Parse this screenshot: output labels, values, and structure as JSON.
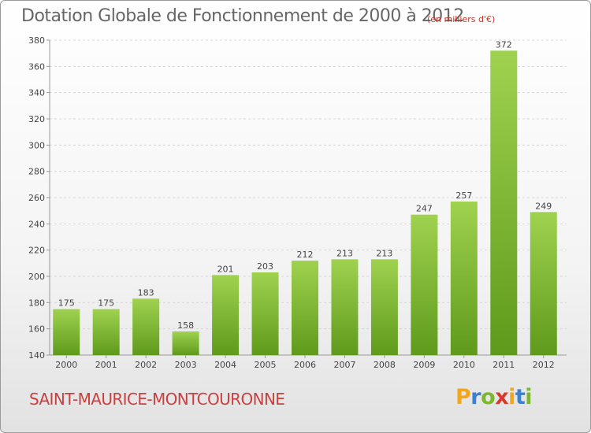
{
  "chart_data": {
    "type": "bar",
    "title": "Dotation Globale de Fonctionnement de 2000 à 2012",
    "unit": "(en milliers d'€)",
    "categories": [
      "2000",
      "2001",
      "2002",
      "2003",
      "2004",
      "2005",
      "2006",
      "2007",
      "2008",
      "2009",
      "2010",
      "2011",
      "2012"
    ],
    "values": [
      175,
      175,
      183,
      158,
      201,
      203,
      212,
      213,
      213,
      247,
      257,
      372,
      249
    ],
    "ylim": [
      140,
      380
    ],
    "yticks": [
      140,
      160,
      180,
      200,
      220,
      240,
      260,
      280,
      300,
      320,
      340,
      360,
      380
    ],
    "grid": true,
    "bar_color": "#7cb82f",
    "xlabel": "",
    "ylabel": ""
  },
  "commune": "SAINT-MAURICE-MONTCOURONNE",
  "logo": {
    "letters": [
      "P",
      "r",
      "o",
      "x",
      "i",
      "t",
      "i"
    ],
    "colors": [
      "#f2a71b",
      "#3a7fd0",
      "#7cb82f",
      "#d8392b",
      "#f2a71b",
      "#3a7fd0",
      "#7cb82f"
    ]
  }
}
